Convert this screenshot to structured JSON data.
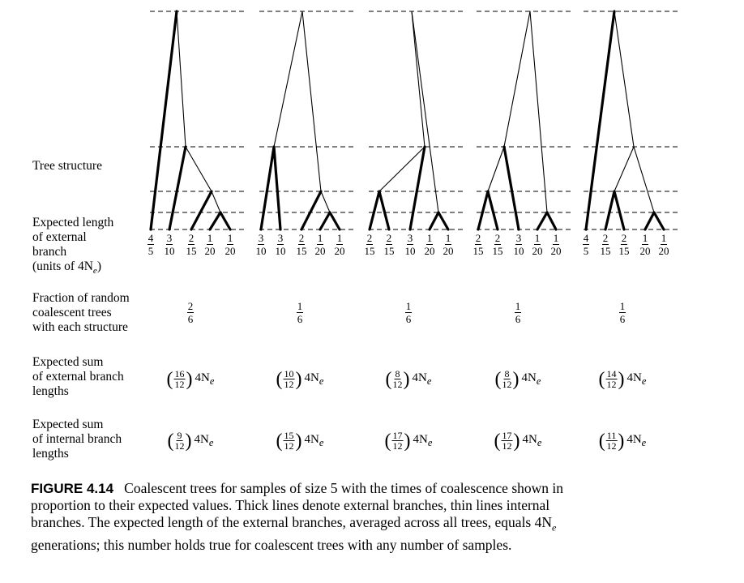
{
  "row_labels": {
    "tree_structure": "Tree structure",
    "expected_length": "Expected length\nof external\nbranch\n(units of 4N",
    "expected_length_sub": "e",
    "expected_length_close": ")",
    "fraction": "Fraction of random\ncoalescent trees\nwith each structure",
    "external_sum": "Expected sum\nof external branch\nlengths",
    "internal_sum": "Expected sum\nof internal branch\nlengths"
  },
  "trees": [
    {
      "branch_lengths": [
        [
          "4",
          "5"
        ],
        [
          "3",
          "10"
        ],
        [
          "2",
          "15"
        ],
        [
          "1",
          "20"
        ],
        [
          "1",
          "20"
        ]
      ],
      "fraction": [
        "2",
        "6"
      ],
      "external_sum": [
        "16",
        "12"
      ],
      "internal_sum": [
        "9",
        "12"
      ]
    },
    {
      "branch_lengths": [
        [
          "3",
          "10"
        ],
        [
          "3",
          "10"
        ],
        [
          "2",
          "15"
        ],
        [
          "1",
          "20"
        ],
        [
          "1",
          "20"
        ]
      ],
      "fraction": [
        "1",
        "6"
      ],
      "external_sum": [
        "10",
        "12"
      ],
      "internal_sum": [
        "15",
        "12"
      ]
    },
    {
      "branch_lengths": [
        [
          "2",
          "15"
        ],
        [
          "2",
          "15"
        ],
        [
          "3",
          "10"
        ],
        [
          "1",
          "20"
        ],
        [
          "1",
          "20"
        ]
      ],
      "fraction": [
        "1",
        "6"
      ],
      "external_sum": [
        "8",
        "12"
      ],
      "internal_sum": [
        "17",
        "12"
      ]
    },
    {
      "branch_lengths": [
        [
          "2",
          "15"
        ],
        [
          "2",
          "15"
        ],
        [
          "3",
          "10"
        ],
        [
          "1",
          "20"
        ],
        [
          "1",
          "20"
        ]
      ],
      "fraction": [
        "1",
        "6"
      ],
      "external_sum": [
        "8",
        "12"
      ],
      "internal_sum": [
        "17",
        "12"
      ]
    },
    {
      "branch_lengths": [
        [
          "4",
          "5"
        ],
        [
          "2",
          "15"
        ],
        [
          "2",
          "15"
        ],
        [
          "1",
          "20"
        ],
        [
          "1",
          "20"
        ]
      ],
      "fraction": [
        "1",
        "6"
      ],
      "external_sum": [
        "14",
        "12"
      ],
      "internal_sum": [
        "11",
        "12"
      ]
    }
  ],
  "sum_suffix": "4N",
  "sum_suffix_sub": "e",
  "caption": {
    "label": "FIGURE 4.14",
    "text_a": "Coalescent trees for samples of size 5 with the times of coalescence shown in proportion to their expected values. Thick lines denote external branches, thin lines internal branches. The expected length of the external branches, averaged across all trees, equals 4N",
    "text_sub": "e",
    "text_b": " generations; this number holds true for coalescent trees with any number of samples."
  }
}
